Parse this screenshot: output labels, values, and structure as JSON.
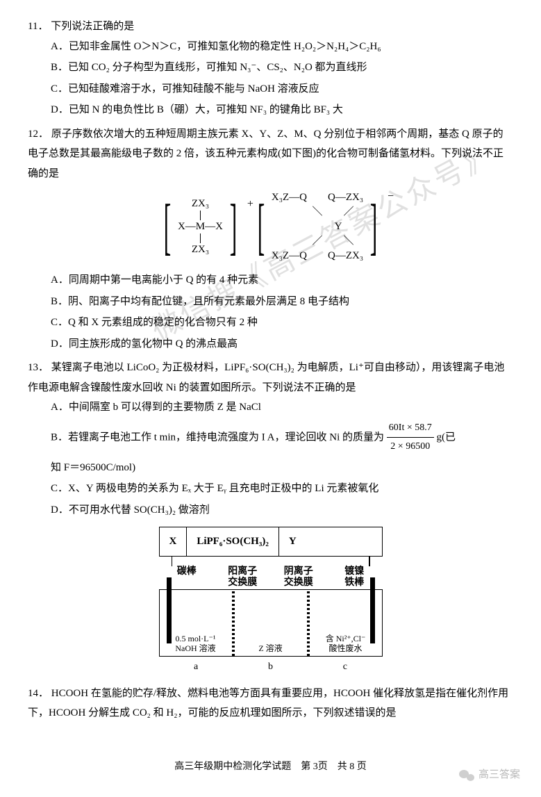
{
  "watermark": "微信搜《高三答案公众号》",
  "q11": {
    "num": "11．",
    "stem": "下列说法正确的是",
    "A": "已知非金属性 O＞N＞C，可推知氢化物的稳定性 H₂O₂＞N₂H₄＞C₂H₆",
    "B": "已知 CO₂ 分子构型为直线形，可推知 N₃⁻、CS₂、N₂O 都为直线形",
    "C": "已知硅酸难溶于水，可推知硅酸不能与 NaOH 溶液反应",
    "D": "已知 N 的电负性比 B（硼）大，可推知 NF₃ 的键角比 BF₃ 大"
  },
  "q12": {
    "num": "12．",
    "stem": "原子序数依次增大的五种短周期主族元素 X、Y、Z、M、Q 分别位于相邻两个周期，基态 Q 原子的电子总数是其最高能级电子数的 2 倍，该五种元素构成(如下图)的化合物可制备储氢材料。下列说法不正确的是",
    "fig": {
      "cation_top": "ZX₃",
      "cation_mid": "X—M—X",
      "cation_bot": "ZX₃",
      "cation_charge": "+",
      "anion_tl": "X₃Z—Q",
      "anion_tr": "Q—ZX₃",
      "anion_center": "Y",
      "anion_bl": "X₃Z—Q",
      "anion_br": "Q—ZX₃",
      "anion_charge": "−"
    },
    "A": "同周期中第一电离能小于 Q 的有 4 种元素",
    "B": "阴、阳离子中均有配位键，且所有元素最外层满足 8 电子结构",
    "C": "Q 和 X 元素组成的稳定的化合物只有 2 种",
    "D": "同主族形成的氢化物中 Q 的沸点最高"
  },
  "q13": {
    "num": "13．",
    "stem": "某锂离子电池以 LiCoO₂ 为正极材料，LiPF₆·SO(CH₃)₂ 为电解质，Li⁺可自由移动），用该锂离子电池作电源电解含镍酸性废水回收 Ni 的装置如图所示。下列说法不正确的是",
    "A": "中间隔室 b 可以得到的主要物质 Z 是 NaCl",
    "B_pre": "若锂离子电池工作 t min，维持电流强度为 I A，理论回收 Ni 的质量为",
    "B_num": "60It × 58.7",
    "B_den": "2 × 96500",
    "B_post": "g(已",
    "B_line2": "知 F＝96500C/mol)",
    "C": "X、Y 两极电势的关系为 Eₓ 大于 Eᵧ 且充电时正极中的 Li 元素被氧化",
    "D": "不可用水代替 SO(CH₃)₂ 做溶剂",
    "cell": {
      "topX": "X",
      "topMid": "LiPF₆·SO(CH₃)₂",
      "topY": "Y",
      "lbl_carbon": "碳棒",
      "lbl_cat_mem": "阳离子\n交换膜",
      "lbl_an_mem": "阴离子\n交换膜",
      "lbl_ni_rod": "镀镍\n铁棒",
      "ch_a": "0.5 mol·L⁻¹\nNaOH 溶液",
      "ch_b": "Z 溶液",
      "ch_c": "含 Ni²⁺,Cl⁻\n酸性废水",
      "a": "a",
      "b": "b",
      "c": "c"
    }
  },
  "q14": {
    "num": "14．",
    "stem": "HCOOH 在氢能的贮存/释放、燃料电池等方面具有重要应用，HCOOH 催化释放氢是指在催化剂作用下，HCOOH 分解生成 CO₂ 和 H₂，可能的反应机理如图所示，下列叙述错误的是"
  },
  "footer": "高三年级期中检测化学试题　第 3页　共 8 页",
  "wx": "高三答案"
}
